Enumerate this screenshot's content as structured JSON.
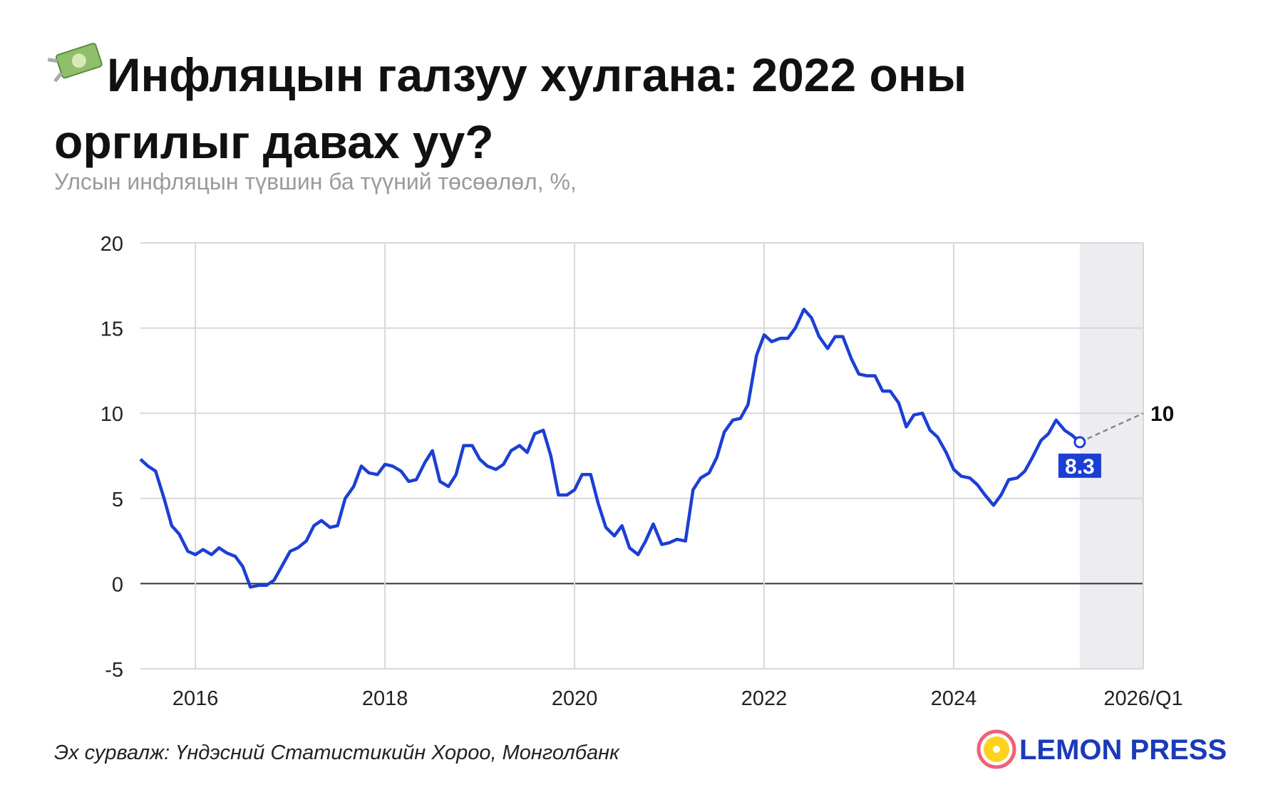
{
  "chart_data": {
    "type": "line",
    "title": "Инфляцын галзуу хулгана: 2022 оны оргилыг давах уу?",
    "subtitle": "Улсын инфляцын түвшин ба түүний төсөөлөл, %,",
    "source": "Эх сурвалж: Үндэсний Статистикийн Хороо, Монголбанк",
    "logo": "LEMON PRESS",
    "color": "#1c3fd3",
    "grid": true,
    "xlim": [
      2015.42,
      2026
    ],
    "xticks": [
      2016,
      2018,
      2020,
      2022,
      2024,
      {
        "value": 2026,
        "label": "2026/Q1"
      }
    ],
    "ylim": [
      -5,
      20
    ],
    "yticks": [
      -5,
      0,
      5,
      10,
      15,
      20
    ],
    "x": [
      2015.42,
      2015.5,
      2015.58,
      2015.67,
      2015.75,
      2015.83,
      2015.92,
      2016,
      2016.08,
      2016.17,
      2016.25,
      2016.33,
      2016.42,
      2016.5,
      2016.58,
      2016.67,
      2016.75,
      2016.83,
      2016.92,
      2017,
      2017.08,
      2017.17,
      2017.25,
      2017.33,
      2017.42,
      2017.5,
      2017.58,
      2017.67,
      2017.75,
      2017.83,
      2017.92,
      2018,
      2018.08,
      2018.17,
      2018.25,
      2018.33,
      2018.42,
      2018.5,
      2018.58,
      2018.67,
      2018.75,
      2018.83,
      2018.92,
      2019,
      2019.08,
      2019.17,
      2019.25,
      2019.33,
      2019.42,
      2019.5,
      2019.58,
      2019.67,
      2019.75,
      2019.83,
      2019.92,
      2020,
      2020.08,
      2020.17,
      2020.25,
      2020.33,
      2020.42,
      2020.5,
      2020.58,
      2020.67,
      2020.75,
      2020.83,
      2020.92,
      2021,
      2021.08,
      2021.17,
      2021.25,
      2021.33,
      2021.42,
      2021.5,
      2021.58,
      2021.67,
      2021.75,
      2021.83,
      2021.92,
      2022,
      2022.08,
      2022.17,
      2022.25,
      2022.33,
      2022.42,
      2022.5,
      2022.58,
      2022.67,
      2022.75,
      2022.83,
      2022.92,
      2023,
      2023.08,
      2023.17,
      2023.25,
      2023.33,
      2023.42,
      2023.5,
      2023.58,
      2023.67,
      2023.75,
      2023.83,
      2023.92,
      2024,
      2024.08,
      2024.17,
      2024.25,
      2024.33,
      2024.42,
      2024.5,
      2024.58,
      2024.67,
      2024.75,
      2024.83,
      2024.92,
      2025,
      2025.08,
      2025.17,
      2025.25,
      2025.33
    ],
    "values": [
      7.3,
      6.9,
      6.6,
      5.0,
      3.4,
      2.9,
      1.9,
      1.7,
      2.0,
      1.7,
      2.1,
      1.8,
      1.6,
      1.0,
      -0.2,
      -0.1,
      -0.1,
      0.2,
      1.1,
      1.9,
      2.1,
      2.5,
      3.4,
      3.7,
      3.3,
      3.4,
      5.0,
      5.7,
      6.9,
      6.5,
      6.4,
      7.0,
      6.9,
      6.6,
      6.0,
      6.1,
      7.1,
      7.8,
      6.0,
      5.7,
      6.4,
      8.1,
      8.1,
      7.3,
      6.9,
      6.7,
      7.0,
      7.8,
      8.1,
      7.7,
      8.8,
      9.0,
      7.5,
      5.2,
      5.2,
      5.5,
      6.4,
      6.4,
      4.7,
      3.3,
      2.8,
      3.4,
      2.1,
      1.7,
      2.5,
      3.5,
      2.3,
      2.4,
      2.6,
      2.5,
      5.5,
      6.2,
      6.5,
      7.4,
      8.9,
      9.6,
      9.7,
      10.5,
      13.4,
      14.6,
      14.2,
      14.4,
      14.4,
      15.0,
      16.1,
      15.6,
      14.5,
      13.8,
      14.5,
      14.5,
      13.2,
      12.3,
      12.2,
      12.2,
      11.3,
      11.3,
      10.6,
      9.2,
      9.9,
      10.0,
      9.0,
      8.6,
      7.7,
      6.7,
      6.3,
      6.2,
      5.8,
      5.2,
      4.6,
      5.2,
      6.1,
      6.2,
      6.6,
      7.4,
      8.4,
      8.8,
      9.6,
      9.0,
      8.7,
      8.3
    ],
    "forecast": {
      "x": 2026,
      "value": 10
    }
  }
}
